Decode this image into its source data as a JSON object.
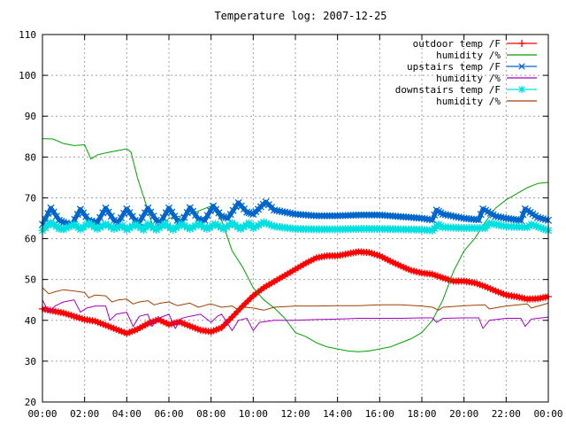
{
  "chart_data": {
    "type": "line",
    "title": "Temperature log: 2007-12-25",
    "xlabel": "",
    "ylabel": "",
    "xlim": [
      0,
      24
    ],
    "ylim": [
      20,
      110
    ],
    "grid": true,
    "legend_position": "top-right",
    "x_ticks": [
      "00:00",
      "02:00",
      "04:00",
      "06:00",
      "08:00",
      "10:00",
      "12:00",
      "14:00",
      "16:00",
      "18:00",
      "20:00",
      "22:00",
      "00:00"
    ],
    "y_ticks": [
      20,
      30,
      40,
      50,
      60,
      70,
      80,
      90,
      100,
      110
    ],
    "series": [
      {
        "name": "outdoor temp /F",
        "color": "#ff0000",
        "marker": "plus",
        "points": [
          [
            0,
            42.8
          ],
          [
            1,
            41.8
          ],
          [
            2,
            40.2
          ],
          [
            2.5,
            39.8
          ],
          [
            3,
            38.8
          ],
          [
            3.5,
            37.8
          ],
          [
            4,
            36.8
          ],
          [
            4.5,
            37.8
          ],
          [
            5,
            39.2
          ],
          [
            5.5,
            40.2
          ],
          [
            6,
            39.0
          ],
          [
            6.5,
            39.6
          ],
          [
            7,
            38.6
          ],
          [
            7.5,
            37.6
          ],
          [
            8,
            37.2
          ],
          [
            8.5,
            38.2
          ],
          [
            9,
            40.8
          ],
          [
            9.5,
            43.5
          ],
          [
            10,
            46.0
          ],
          [
            10.5,
            48.0
          ],
          [
            11,
            49.5
          ],
          [
            11.5,
            51.0
          ],
          [
            12,
            52.5
          ],
          [
            12.5,
            54.0
          ],
          [
            13,
            55.3
          ],
          [
            13.5,
            55.8
          ],
          [
            14,
            55.8
          ],
          [
            14.5,
            56.3
          ],
          [
            15,
            56.8
          ],
          [
            15.5,
            56.6
          ],
          [
            16,
            55.8
          ],
          [
            16.5,
            54.5
          ],
          [
            17,
            53.3
          ],
          [
            17.5,
            52.2
          ],
          [
            18,
            51.6
          ],
          [
            18.5,
            51.3
          ],
          [
            19,
            50.4
          ],
          [
            19.5,
            49.6
          ],
          [
            20,
            49.6
          ],
          [
            20.5,
            49.2
          ],
          [
            21,
            48.3
          ],
          [
            21.5,
            47.2
          ],
          [
            22,
            46.2
          ],
          [
            22.5,
            45.8
          ],
          [
            23,
            45.2
          ],
          [
            23.5,
            45.3
          ],
          [
            24,
            45.8
          ]
        ]
      },
      {
        "name": "humidity /%",
        "color": "#00a000",
        "marker": "none",
        "points": [
          [
            0,
            84.5
          ],
          [
            0.5,
            84.4
          ],
          [
            1,
            83.3
          ],
          [
            1.5,
            82.8
          ],
          [
            2,
            83.0
          ],
          [
            2.3,
            79.5
          ],
          [
            2.6,
            80.5
          ],
          [
            3,
            81.0
          ],
          [
            3.5,
            81.5
          ],
          [
            4,
            82.0
          ],
          [
            4.2,
            81.2
          ],
          [
            4.5,
            75.0
          ],
          [
            5,
            67.0
          ],
          [
            5.3,
            62.0
          ],
          [
            5.7,
            63.0
          ],
          [
            6,
            65.0
          ],
          [
            6.5,
            65.5
          ],
          [
            7,
            66.0
          ],
          [
            7.5,
            67.0
          ],
          [
            8,
            68.0
          ],
          [
            8.5,
            64.5
          ],
          [
            9,
            57.0
          ],
          [
            9.5,
            53.0
          ],
          [
            10,
            48.0
          ],
          [
            10.5,
            45.0
          ],
          [
            11,
            43.0
          ],
          [
            11.5,
            40.5
          ],
          [
            12,
            37.0
          ],
          [
            12.5,
            36.0
          ],
          [
            13,
            34.5
          ],
          [
            13.5,
            33.5
          ],
          [
            14,
            33.0
          ],
          [
            14.5,
            32.5
          ],
          [
            15,
            32.3
          ],
          [
            15.5,
            32.5
          ],
          [
            16,
            33.0
          ],
          [
            16.5,
            33.5
          ],
          [
            17,
            34.5
          ],
          [
            17.5,
            35.5
          ],
          [
            18,
            37.0
          ],
          [
            18.5,
            40.0
          ],
          [
            19,
            45.0
          ],
          [
            19.5,
            52.0
          ],
          [
            20,
            57.0
          ],
          [
            20.5,
            60.0
          ],
          [
            21,
            64.0
          ],
          [
            21.5,
            67.5
          ],
          [
            22,
            69.5
          ],
          [
            22.5,
            71.0
          ],
          [
            23,
            72.5
          ],
          [
            23.5,
            73.5
          ],
          [
            24,
            73.8
          ]
        ]
      },
      {
        "name": "upstairs temp /F",
        "color": "#0066cc",
        "marker": "x",
        "points": [
          [
            0,
            63.5
          ],
          [
            0.4,
            67.5
          ],
          [
            0.8,
            64.5
          ],
          [
            1,
            64.0
          ],
          [
            1.4,
            63.5
          ],
          [
            1.8,
            67.2
          ],
          [
            2.2,
            64.5
          ],
          [
            2.6,
            64.0
          ],
          [
            3,
            67.5
          ],
          [
            3.4,
            64.5
          ],
          [
            3.6,
            64.0
          ],
          [
            4,
            67.3
          ],
          [
            4.4,
            64.5
          ],
          [
            4.6,
            64.0
          ],
          [
            5,
            67.5
          ],
          [
            5.4,
            64.5
          ],
          [
            5.6,
            64.0
          ],
          [
            6,
            67.5
          ],
          [
            6.4,
            64.5
          ],
          [
            6.6,
            64.0
          ],
          [
            7,
            67.6
          ],
          [
            7.4,
            64.8
          ],
          [
            7.7,
            64.5
          ],
          [
            8.1,
            68.0
          ],
          [
            8.5,
            65.5
          ],
          [
            8.8,
            65.0
          ],
          [
            9.3,
            68.8
          ],
          [
            9.7,
            66.5
          ],
          [
            10,
            66.0
          ],
          [
            10.6,
            69.0
          ],
          [
            11,
            67.0
          ],
          [
            12,
            66.0
          ],
          [
            13,
            65.6
          ],
          [
            14,
            65.6
          ],
          [
            15,
            65.8
          ],
          [
            16,
            65.8
          ],
          [
            17,
            65.4
          ],
          [
            18,
            65.0
          ],
          [
            18.5,
            64.6
          ],
          [
            18.7,
            67.0
          ],
          [
            19,
            66.0
          ],
          [
            20,
            65.0
          ],
          [
            20.7,
            64.6
          ],
          [
            20.9,
            67.3
          ],
          [
            21.5,
            65.5
          ],
          [
            22,
            65.0
          ],
          [
            22.7,
            64.5
          ],
          [
            22.9,
            67.3
          ],
          [
            23.5,
            65.2
          ],
          [
            24,
            64.5
          ]
        ]
      },
      {
        "name": "humidity /%",
        "color": "#a000c0",
        "marker": "none",
        "points": [
          [
            0,
            45.0
          ],
          [
            0.3,
            42.0
          ],
          [
            0.6,
            43.5
          ],
          [
            1,
            44.5
          ],
          [
            1.5,
            45.0
          ],
          [
            1.8,
            42.0
          ],
          [
            2.1,
            43.0
          ],
          [
            2.5,
            43.5
          ],
          [
            3,
            43.5
          ],
          [
            3.2,
            40.0
          ],
          [
            3.5,
            41.5
          ],
          [
            4,
            42.0
          ],
          [
            4.3,
            38.5
          ],
          [
            4.6,
            41.0
          ],
          [
            5,
            41.5
          ],
          [
            5.2,
            38.5
          ],
          [
            5.5,
            40.5
          ],
          [
            6,
            41.5
          ],
          [
            6.3,
            38.0
          ],
          [
            6.6,
            40.5
          ],
          [
            7,
            41.0
          ],
          [
            7.5,
            41.5
          ],
          [
            8,
            39.5
          ],
          [
            8.3,
            41.0
          ],
          [
            8.5,
            41.5
          ],
          [
            9,
            37.5
          ],
          [
            9.3,
            40.0
          ],
          [
            9.7,
            40.5
          ],
          [
            10,
            37.5
          ],
          [
            10.3,
            39.5
          ],
          [
            11,
            40.0
          ],
          [
            12,
            40.0
          ],
          [
            13,
            40.2
          ],
          [
            14,
            40.3
          ],
          [
            15,
            40.5
          ],
          [
            16,
            40.5
          ],
          [
            17,
            40.5
          ],
          [
            18,
            40.6
          ],
          [
            18.5,
            40.6
          ],
          [
            18.7,
            39.5
          ],
          [
            19,
            40.5
          ],
          [
            20,
            40.6
          ],
          [
            20.7,
            40.6
          ],
          [
            20.9,
            38.0
          ],
          [
            21.2,
            40.0
          ],
          [
            22,
            40.5
          ],
          [
            22.7,
            40.5
          ],
          [
            22.9,
            38.5
          ],
          [
            23.2,
            40.3
          ],
          [
            24,
            40.8
          ]
        ]
      },
      {
        "name": "downstairs temp /F",
        "color": "#00e0e0",
        "marker": "star",
        "points": [
          [
            0,
            62.0
          ],
          [
            0.4,
            64.0
          ],
          [
            0.8,
            62.5
          ],
          [
            1,
            62.3
          ],
          [
            1.5,
            63.5
          ],
          [
            1.8,
            62.3
          ],
          [
            2.2,
            63.8
          ],
          [
            2.6,
            62.4
          ],
          [
            3,
            63.6
          ],
          [
            3.4,
            62.4
          ],
          [
            3.8,
            63.2
          ],
          [
            4,
            62.2
          ],
          [
            4.4,
            63.5
          ],
          [
            4.8,
            62.2
          ],
          [
            5,
            63.6
          ],
          [
            5.4,
            62.2
          ],
          [
            5.8,
            63.6
          ],
          [
            6.2,
            62.2
          ],
          [
            6.6,
            63.6
          ],
          [
            7,
            62.4
          ],
          [
            7.4,
            63.6
          ],
          [
            7.8,
            62.4
          ],
          [
            8.2,
            63.6
          ],
          [
            8.6,
            62.4
          ],
          [
            9,
            63.8
          ],
          [
            9.4,
            62.4
          ],
          [
            9.8,
            63.8
          ],
          [
            10,
            62.6
          ],
          [
            10.5,
            64.0
          ],
          [
            11,
            63.0
          ],
          [
            12,
            62.4
          ],
          [
            13,
            62.3
          ],
          [
            14,
            62.3
          ],
          [
            15,
            62.4
          ],
          [
            16,
            62.4
          ],
          [
            17,
            62.3
          ],
          [
            18,
            62.2
          ],
          [
            18.5,
            62.0
          ],
          [
            18.8,
            63.5
          ],
          [
            19,
            62.8
          ],
          [
            20,
            62.6
          ],
          [
            21,
            62.6
          ],
          [
            21.2,
            63.8
          ],
          [
            22,
            63.0
          ],
          [
            23,
            62.8
          ],
          [
            23.2,
            63.5
          ],
          [
            24,
            62.0
          ]
        ]
      },
      {
        "name": "humidity /%",
        "color": "#a04000",
        "marker": "none",
        "points": [
          [
            0,
            48.0
          ],
          [
            0.3,
            46.5
          ],
          [
            0.6,
            47.0
          ],
          [
            1,
            47.5
          ],
          [
            1.5,
            47.2
          ],
          [
            2,
            46.8
          ],
          [
            2.2,
            45.5
          ],
          [
            2.5,
            46.2
          ],
          [
            3,
            46.0
          ],
          [
            3.3,
            44.5
          ],
          [
            3.6,
            45.0
          ],
          [
            4,
            45.2
          ],
          [
            4.3,
            44.0
          ],
          [
            4.6,
            44.5
          ],
          [
            5,
            44.8
          ],
          [
            5.3,
            43.8
          ],
          [
            5.6,
            44.2
          ],
          [
            6,
            44.5
          ],
          [
            6.4,
            43.6
          ],
          [
            6.8,
            44.0
          ],
          [
            7,
            44.2
          ],
          [
            7.4,
            43.2
          ],
          [
            7.8,
            43.8
          ],
          [
            8,
            44.0
          ],
          [
            8.5,
            43.2
          ],
          [
            9,
            43.5
          ],
          [
            9.3,
            42.5
          ],
          [
            9.6,
            43.2
          ],
          [
            10,
            43.0
          ],
          [
            10.5,
            42.5
          ],
          [
            11,
            43.2
          ],
          [
            12,
            43.5
          ],
          [
            13,
            43.5
          ],
          [
            14,
            43.6
          ],
          [
            15,
            43.6
          ],
          [
            16,
            43.8
          ],
          [
            17,
            43.8
          ],
          [
            18,
            43.5
          ],
          [
            18.5,
            43.2
          ],
          [
            18.8,
            42.5
          ],
          [
            19,
            43.2
          ],
          [
            20,
            43.6
          ],
          [
            21,
            43.8
          ],
          [
            21.2,
            42.8
          ],
          [
            22,
            43.5
          ],
          [
            23,
            44.0
          ],
          [
            23.2,
            43.0
          ],
          [
            24,
            44.2
          ]
        ]
      }
    ]
  }
}
